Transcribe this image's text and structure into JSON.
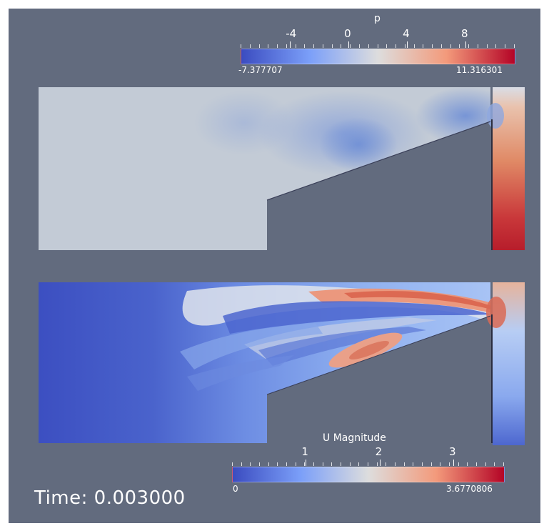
{
  "colormap": {
    "name": "cool-to-warm",
    "stops": [
      "#3b4cc0",
      "#7b9ff9",
      "#dddddd",
      "#f39a7b",
      "#b40426"
    ]
  },
  "pressure_legend": {
    "title": "p",
    "ticks": [
      "-4",
      "0",
      "4",
      "8"
    ],
    "tick_values": [
      -4,
      0,
      4,
      8
    ],
    "min_label": "-7.377707",
    "max_label": "11.316301",
    "min": -7.377707,
    "max": 11.316301
  },
  "velocity_legend": {
    "title": "U Magnitude",
    "ticks": [
      "1",
      "2",
      "3"
    ],
    "tick_values": [
      1,
      2,
      3
    ],
    "min_label": "0",
    "max_label": "3.6770806",
    "min": 0,
    "max": 3.6770806
  },
  "time": {
    "label": "Time: 0.003000"
  }
}
